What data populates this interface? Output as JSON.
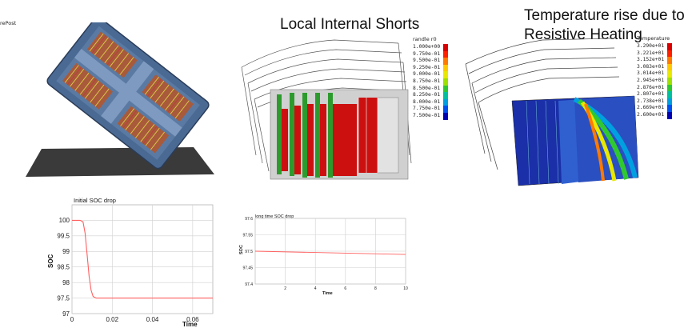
{
  "panel1": {
    "label": "rePost"
  },
  "panel2": {
    "title": "Local Internal Shorts",
    "colorbar": {
      "title": "randle r0",
      "labels": [
        "1.000e+00",
        "9.750e-01",
        "9.500e-01",
        "9.250e-01",
        "9.000e-01",
        "8.750e-01",
        "8.500e-01",
        "8.250e-01",
        "8.000e-01",
        "7.750e-01",
        "7.500e-01"
      ],
      "colors": [
        "#d80000",
        "#ff2000",
        "#ff7a00",
        "#ffc800",
        "#e8e800",
        "#9ee000",
        "#30c830",
        "#00c0a0",
        "#00a0e0",
        "#0050f0",
        "#0000b0"
      ]
    }
  },
  "panel3": {
    "title_line1": "Temperature rise due to",
    "title_line2": "Resistive Heating",
    "colorbar": {
      "title": "Temperature",
      "labels": [
        "3.290e+01",
        "3.221e+01",
        "3.152e+01",
        "3.083e+01",
        "3.014e+01",
        "2.945e+01",
        "2.876e+01",
        "2.807e+01",
        "2.738e+01",
        "2.669e+01",
        "2.600e+01"
      ],
      "colors": [
        "#d80000",
        "#ff2000",
        "#ff7a00",
        "#ffc800",
        "#e8e800",
        "#9ee000",
        "#30c830",
        "#00c0a0",
        "#00a0e0",
        "#0050f0",
        "#0000b0"
      ]
    }
  },
  "chart_data": [
    {
      "type": "line",
      "title": "Initial SOC drop",
      "xlabel": "Time",
      "ylabel": "SOC",
      "xlim": [
        0,
        0.07
      ],
      "ylim": [
        97,
        100.5
      ],
      "xticks": [
        "0",
        "0.02",
        "0.04",
        "0.06"
      ],
      "yticks": [
        "100",
        "99.5",
        "99",
        "98.5",
        "98",
        "97.5",
        "97"
      ],
      "grid": true,
      "series": [
        {
          "color": "#ff6060",
          "x": [
            0,
            0.004,
            0.0055,
            0.0065,
            0.0075,
            0.0085,
            0.0095,
            0.0105,
            0.012,
            0.015,
            0.03,
            0.05,
            0.07
          ],
          "y": [
            100,
            100,
            99.95,
            99.6,
            98.9,
            98.2,
            97.75,
            97.55,
            97.5,
            97.5,
            97.5,
            97.5,
            97.5
          ]
        }
      ]
    },
    {
      "type": "line",
      "title": "long time SOC drop",
      "xlabel": "Time",
      "ylabel": "SOC",
      "xlim": [
        0,
        10
      ],
      "ylim": [
        97.4,
        97.6
      ],
      "xticks": [
        "2",
        "4",
        "6",
        "8",
        "10"
      ],
      "yticks": [
        "97.6",
        "97.55",
        "97.5",
        "97.45",
        "97.4"
      ],
      "grid": true,
      "series": [
        {
          "color": "#ff6060",
          "x": [
            0,
            10
          ],
          "y": [
            97.5,
            97.49
          ]
        }
      ]
    }
  ]
}
